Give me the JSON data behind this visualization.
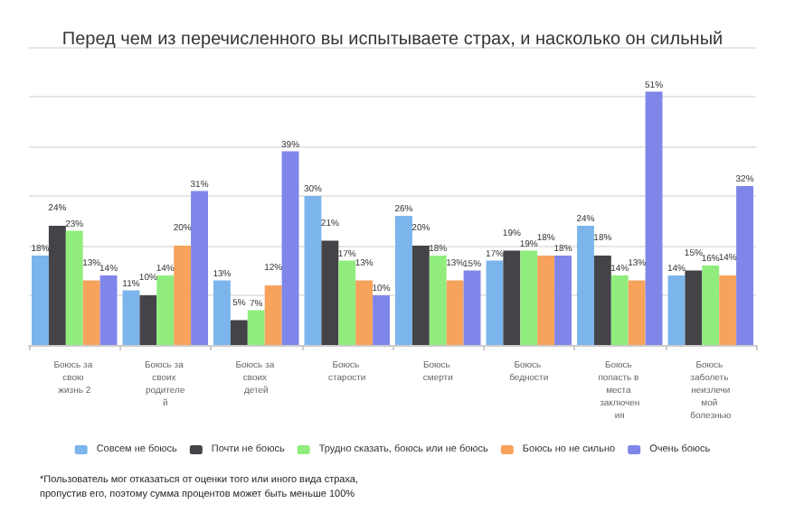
{
  "chart_data": {
    "type": "bar",
    "title": "Перед чем из перечисленного вы испытываете страх, и насколько он сильный",
    "categories": [
      "Боюсь за свою жизнь 2",
      "Боюсь за своих родителей",
      "Боюсь за своих детей",
      "Боюсь старости",
      "Боюсь смерти",
      "Боюсь бедности",
      "Боюсь попасть в места заключения",
      "Боюсь заболеть неизлечимой болезнью"
    ],
    "series": [
      {
        "name": "Совсем не боюсь",
        "color": "#7cb5ec",
        "values": [
          18,
          11,
          13,
          30,
          26,
          17,
          24,
          14
        ],
        "value_labels": [
          "18%",
          "11%",
          "13%",
          "30%",
          "26%",
          "17%",
          "24%",
          "14%"
        ]
      },
      {
        "name": "Почти не боюсь",
        "color": "#434348",
        "values": [
          24,
          10,
          5,
          21,
          20,
          19,
          18,
          15
        ],
        "value_labels": [
          "24%",
          "10%",
          "5%",
          "21%",
          "20%",
          "19%",
          "18%",
          "15%"
        ]
      },
      {
        "name": "Трудно сказать, боюсь или не боюсь",
        "color": "#90ed7d",
        "values": [
          23,
          14,
          7,
          17,
          18,
          19,
          14,
          16
        ],
        "value_labels": [
          "23%",
          "14%",
          "7%",
          "17%",
          "18%",
          "19%",
          "14%",
          "16%"
        ]
      },
      {
        "name": "Боюсь но не сильно",
        "color": "#f7a35c",
        "values": [
          13,
          20,
          12,
          13,
          13,
          18,
          13,
          14
        ],
        "value_labels": [
          "13%",
          "20%",
          "12%",
          "13%",
          "13%",
          "18%",
          "13%",
          "14%"
        ]
      },
      {
        "name": "Очень боюсь",
        "color": "#8085e9",
        "values": [
          14,
          31,
          39,
          10,
          15,
          18,
          51,
          32
        ],
        "value_labels": [
          "14%",
          "31%",
          "39%",
          "10%",
          "15%",
          "18%",
          "51%",
          "32%"
        ]
      }
    ],
    "ylim": [
      0,
      60
    ],
    "yticks": [
      {
        "value": 0,
        "label": null
      },
      {
        "value": 10,
        "label": null
      },
      {
        "value": 20,
        "label": null
      },
      {
        "value": 30,
        "label": null
      },
      {
        "value": 40,
        "label": null
      },
      {
        "value": 50,
        "label": null
      },
      {
        "value": 60,
        "label": null
      }
    ],
    "grid": "y",
    "legend": "bottom",
    "annotations": [
      "*Пользователь мог отказаться от оценки того или иного вида страха, пропустив его, поэтому сумма процентов может быть меньше 100%"
    ]
  }
}
